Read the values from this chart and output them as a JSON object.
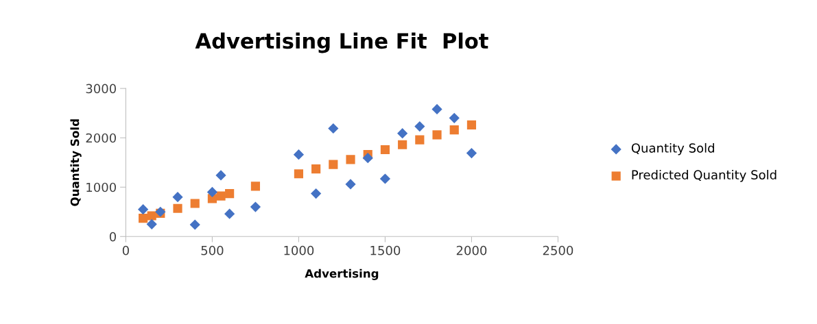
{
  "chart_data": {
    "type": "scatter",
    "title": "Advertising Line Fit  Plot",
    "xlabel": "Advertising",
    "ylabel": "Quantity Sold",
    "x": [
      100,
      150,
      200,
      300,
      400,
      500,
      550,
      600,
      750,
      1000,
      1100,
      1200,
      1300,
      1400,
      1500,
      1600,
      1700,
      1800,
      1900,
      2000
    ],
    "series": [
      {
        "name": "Quantity Sold",
        "color": "#4472c4",
        "marker": "diamond",
        "values": [
          550,
          250,
          500,
          800,
          240,
          900,
          1240,
          460,
          600,
          1660,
          870,
          2190,
          1060,
          1590,
          1170,
          2090,
          2230,
          2580,
          2400,
          1690
        ]
      },
      {
        "name": "Predicted Quantity Sold",
        "color": "#ed7d31",
        "marker": "square",
        "values": [
          370,
          420,
          470,
          570,
          670,
          770,
          820,
          870,
          1020,
          1270,
          1370,
          1460,
          1560,
          1660,
          1760,
          1860,
          1960,
          2060,
          2160,
          2260
        ]
      }
    ],
    "xlim": [
      0,
      2500
    ],
    "xticks": [
      0,
      500,
      1000,
      1500,
      2000,
      2500
    ],
    "ylim": [
      0,
      3000
    ],
    "yticks": [
      0,
      1000,
      2000,
      3000
    ],
    "grid": false,
    "legend": "right"
  }
}
